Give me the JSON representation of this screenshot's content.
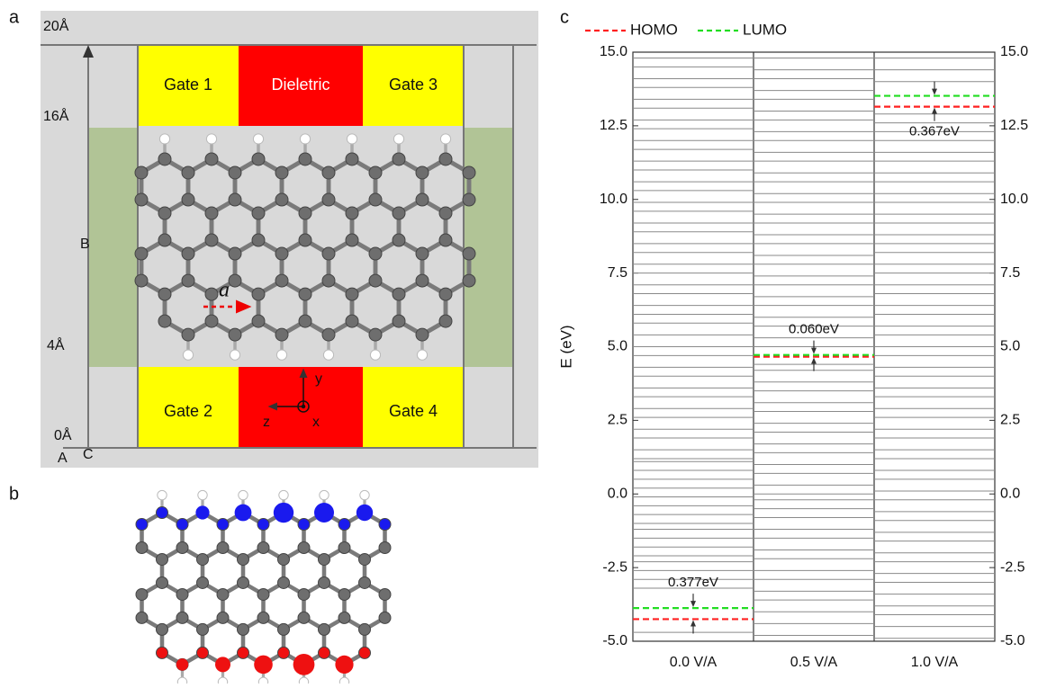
{
  "panels": {
    "a": {
      "label": "a",
      "dims": [
        "20Å",
        "16Å",
        "4Å",
        "0Å"
      ],
      "corners": [
        "A",
        "B",
        "C"
      ],
      "gates": [
        "Gate 1",
        "Dieletric",
        "Gate 3",
        "Gate 2",
        "Gate 4"
      ],
      "bond": "a",
      "axes": [
        "y",
        "z",
        "x"
      ]
    },
    "b": {
      "label": "b"
    },
    "c": {
      "label": "c"
    }
  },
  "chart_data": {
    "type": "energy-levels",
    "ylabel": "E (eV)",
    "categories": [
      "0.0 V/A",
      "0.5 V/A",
      "1.0 V/A"
    ],
    "ylim": [
      -5,
      15
    ],
    "yticks": [
      {
        "value": -5,
        "label": "-5.0"
      },
      {
        "value": -2.5,
        "label": "-2.5"
      },
      {
        "value": 0,
        "label": "0.0"
      },
      {
        "value": 2.5,
        "label": "2.5"
      },
      {
        "value": 5,
        "label": "5.0"
      },
      {
        "value": 7.5,
        "label": "7.5"
      },
      {
        "value": 10,
        "label": "10.0"
      },
      {
        "value": 12.5,
        "label": "12.5"
      },
      {
        "value": 15,
        "label": "15.0"
      }
    ],
    "series": [
      {
        "name": "HOMO",
        "color": "#ff2020",
        "values": [
          -4.25,
          4.66,
          13.15
        ]
      },
      {
        "name": "LUMO",
        "color": "#22dd22",
        "values": [
          -3.873,
          4.72,
          13.517
        ]
      }
    ],
    "annotations": [
      "0.377eV",
      "0.060eV",
      "0.367eV"
    ],
    "level_color": "#8a8a8a",
    "levels": [
      [
        -4.7,
        -3.2,
        -2.9,
        -2.6,
        -2.3,
        -2.1,
        -1.8,
        -1.5,
        -1.2,
        -1.0,
        -0.7,
        -0.4,
        -0.1,
        0.2,
        0.5,
        0.8,
        1.1,
        1.2,
        1.5,
        1.9,
        2.2,
        2.6,
        2.9,
        3.3,
        3.6,
        4.0,
        4.3,
        4.7,
        5.0,
        5.4,
        5.8,
        6.1,
        6.4,
        6.8,
        7.1,
        7.5,
        7.8,
        8.2,
        8.5,
        8.9,
        9.2,
        9.6,
        9.9,
        10.3,
        10.6,
        11.0,
        11.3,
        11.7,
        12.0,
        12.4,
        12.7,
        13.1,
        13.4,
        13.8,
        14.1,
        14.5,
        14.8
      ],
      [
        -4.8,
        -4.4,
        -4.0,
        -3.6,
        -3.3,
        -2.9,
        -2.6,
        -2.2,
        -1.9,
        -1.5,
        -1.2,
        -0.8,
        -0.5,
        -0.2,
        0.0,
        0.3,
        0.7,
        1.0,
        1.4,
        1.7,
        2.1,
        2.4,
        2.8,
        3.1,
        3.5,
        3.8,
        4.2,
        4.4,
        5.0,
        5.3,
        5.7,
        6.0,
        6.4,
        6.7,
        7.1,
        7.4,
        7.8,
        8.1,
        8.5,
        8.8,
        9.2,
        9.5,
        9.9,
        10.2,
        10.6,
        10.9,
        11.3,
        11.6,
        12.0,
        12.3,
        12.7,
        13.0,
        13.4,
        13.7,
        14.1,
        14.4,
        14.8
      ],
      [
        -4.9,
        -4.5,
        -4.1,
        -3.8,
        -3.4,
        -3.0,
        -2.7,
        -2.3,
        -2.0,
        -1.6,
        -1.3,
        -0.9,
        -0.6,
        -0.2,
        0.1,
        0.5,
        0.8,
        1.2,
        1.5,
        1.9,
        2.2,
        2.6,
        2.9,
        3.3,
        3.6,
        4.0,
        4.3,
        4.7,
        5.0,
        5.4,
        5.7,
        6.1,
        6.4,
        6.8,
        7.1,
        7.5,
        7.8,
        8.2,
        8.5,
        8.8,
        9.2,
        9.5,
        9.9,
        10.2,
        10.6,
        10.9,
        11.3,
        11.6,
        12.0,
        12.3,
        12.6,
        12.9,
        14.0,
        14.4,
        14.8
      ]
    ]
  }
}
